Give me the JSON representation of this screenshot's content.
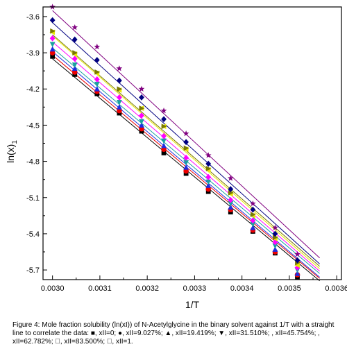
{
  "chart_data": {
    "type": "scatter",
    "title": "",
    "xlabel": "1/T",
    "ylabel": "ln(x)",
    "ylabel_sub": "1",
    "xlim": [
      0.00298,
      0.00361
    ],
    "ylim": [
      -5.78,
      -3.52
    ],
    "xticks": [
      0.003,
      0.0031,
      0.0032,
      0.0033,
      0.0034,
      0.0035,
      0.0036
    ],
    "xtick_labels": [
      "0.0030",
      "0.0031",
      "0.0032",
      "0.0033",
      "0.0034",
      "0.0035",
      "0.0036"
    ],
    "yticks": [
      -3.6,
      -3.9,
      -4.2,
      -4.5,
      -4.8,
      -5.1,
      -5.4,
      -5.7
    ],
    "ytick_labels": [
      "-3.6",
      "-3.9",
      "-4.2",
      "-4.5",
      "-4.8",
      "-5.1",
      "-5.4",
      "-5.7"
    ],
    "grid": false,
    "legend": "none",
    "x": [
      0.003,
      0.003047,
      0.003094,
      0.003141,
      0.003188,
      0.003235,
      0.003282,
      0.003329,
      0.003376,
      0.003423,
      0.00347,
      0.003517,
      0.003564
    ],
    "series": [
      {
        "marker": "square",
        "color": "#000000",
        "values": [
          -3.93,
          -4.08,
          -4.24,
          -4.4,
          -4.55,
          -4.73,
          -4.9,
          -5.05,
          -5.22,
          -5.38,
          -5.56,
          -5.76,
          null
        ]
      },
      {
        "marker": "circle",
        "color": "#ee0000",
        "values": [
          -3.9,
          -4.06,
          -4.22,
          -4.38,
          -4.53,
          -4.7,
          -4.88,
          -5.03,
          -5.2,
          -5.37,
          -5.55,
          -5.74,
          null
        ]
      },
      {
        "marker": "triangle-up",
        "color": "#1f2be0",
        "values": [
          -3.87,
          -4.03,
          -4.2,
          -4.35,
          -4.5,
          -4.67,
          -4.85,
          -5.0,
          -5.18,
          -5.35,
          -5.53,
          -5.73,
          null
        ]
      },
      {
        "marker": "triangle-down",
        "color": "#1aa0a0",
        "values": [
          -3.83,
          -4.0,
          -4.16,
          -4.31,
          -4.47,
          -4.63,
          -4.81,
          -4.97,
          -5.15,
          -5.32,
          -5.5,
          -5.7,
          null
        ]
      },
      {
        "marker": "diamond",
        "color": "#ff00ff",
        "values": [
          -3.78,
          -3.95,
          -4.12,
          -4.27,
          -4.42,
          -4.59,
          -4.77,
          -4.93,
          -5.12,
          -5.29,
          -5.47,
          -5.68,
          null
        ]
      },
      {
        "marker": "triangle-left",
        "color": "#e8e800",
        "values": [
          -3.73,
          -3.91,
          -4.07,
          -4.21,
          -4.36,
          -4.51,
          -4.7,
          -4.87,
          -5.07,
          -5.25,
          -5.44,
          -5.66,
          null
        ]
      },
      {
        "marker": "triangle-right",
        "color": "#7a7a00",
        "values": [
          -3.72,
          -3.9,
          -4.06,
          -4.2,
          -4.36,
          -4.51,
          -4.69,
          -4.86,
          -5.06,
          -5.24,
          -5.43,
          -5.64,
          null
        ]
      },
      {
        "marker": "diamond",
        "color": "#000080",
        "values": [
          -3.63,
          -3.79,
          -3.96,
          -4.13,
          -4.27,
          -4.45,
          -4.64,
          -4.82,
          -5.03,
          -5.2,
          -5.4,
          -5.62,
          null
        ]
      },
      {
        "marker": "star",
        "color": "#800080",
        "values": [
          -3.52,
          -3.69,
          -3.85,
          -4.03,
          -4.2,
          -4.38,
          -4.57,
          -4.75,
          -4.94,
          -5.15,
          -5.35,
          -5.57,
          null
        ]
      }
    ],
    "fit_lines": [
      {
        "color": "#000000",
        "start": -3.95,
        "end": -5.79
      },
      {
        "color": "#ee0000",
        "start": -3.92,
        "end": -5.77
      },
      {
        "color": "#1f2be0",
        "start": -3.89,
        "end": -5.76
      },
      {
        "color": "#1aa0a0",
        "start": -3.86,
        "end": -5.73
      },
      {
        "color": "#ff00ff",
        "start": -3.81,
        "end": -5.71
      },
      {
        "color": "#e8e800",
        "start": -3.76,
        "end": -5.69
      },
      {
        "color": "#7a7a00",
        "start": -3.75,
        "end": -5.67
      },
      {
        "color": "#000080",
        "start": -3.65,
        "end": -5.65
      },
      {
        "color": "#800080",
        "start": -3.55,
        "end": -5.6
      }
    ]
  },
  "caption": "Figure 4: Mole fraction solubility (ln(xI)) of N-Acetylglycine in the binary solvent against 1/T with a straight line to correlate the data: ■, xII=0; ●, xII=9.027%; ▲, xII=19.419%; ▼, xII=31.510%; , xII=45.754%; , xII=62.782%; ￿, xII=83.500%; ￿, xII=1."
}
